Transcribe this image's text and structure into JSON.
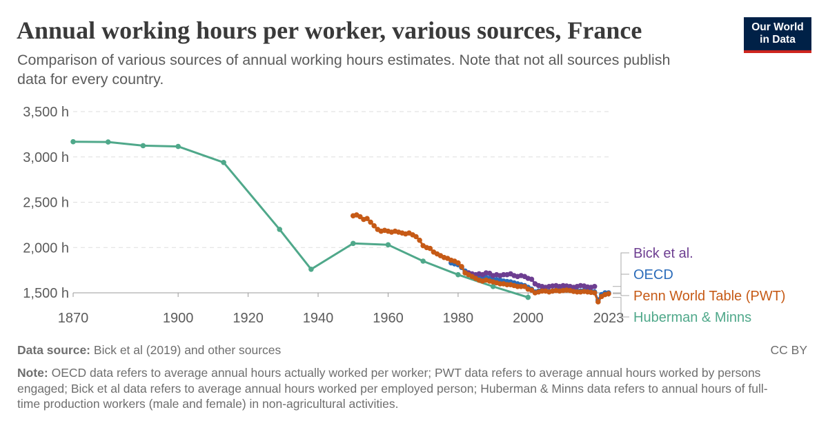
{
  "header": {
    "title": "Annual working hours per worker, various sources, France",
    "subtitle": "Comparison of various sources of annual working hours estimates. Note that not all sources publish data for every country.",
    "logo_line1": "Our World",
    "logo_line2": "in Data"
  },
  "footer": {
    "source_label": "Data source:",
    "source_text": "Bick et al (2019) and other sources",
    "license": "CC BY",
    "note_label": "Note:",
    "note_text": "OECD data refers to average annual hours actually worked per worker; PWT data refers to average annual hours worked by persons engaged; Bick et al data refers to average annual hours worked per employed person; Huberman & Minns data refers to annual hours of full-time production workers (male and female) in non-agricultural activities."
  },
  "colors": {
    "bick": "#6d3e91",
    "oecd": "#2b6cba",
    "pwt": "#c65a16",
    "huberman": "#4fa88a",
    "grid": "#dddddd"
  },
  "chart_data": {
    "type": "line",
    "x_ticks": [
      "1870",
      "1900",
      "1920",
      "1940",
      "1960",
      "1980",
      "2000",
      "2023"
    ],
    "y_ticks": [
      "1,500 h",
      "2,000 h",
      "2,500 h",
      "3,000 h",
      "3,500 h"
    ],
    "y_tick_values": [
      1500,
      2000,
      2500,
      3000,
      3500
    ],
    "x_tick_values": [
      1870,
      1900,
      1920,
      1940,
      1960,
      1980,
      2000,
      2023
    ],
    "xlim": [
      1870,
      2023
    ],
    "ylim": [
      1500,
      3500
    ],
    "grid": "horizontal dashed",
    "legend": "right, end-of-line labels",
    "series": [
      {
        "name": "Bick et al.",
        "color_key": "bick",
        "points": [
          [
            1983,
            1720
          ],
          [
            1984,
            1710
          ],
          [
            1985,
            1700
          ],
          [
            1986,
            1710
          ],
          [
            1987,
            1700
          ],
          [
            1988,
            1720
          ],
          [
            1989,
            1715
          ],
          [
            1990,
            1690
          ],
          [
            1991,
            1700
          ],
          [
            1992,
            1690
          ],
          [
            1993,
            1700
          ],
          [
            1994,
            1700
          ],
          [
            1995,
            1710
          ],
          [
            1996,
            1690
          ],
          [
            1997,
            1680
          ],
          [
            1998,
            1690
          ],
          [
            1999,
            1680
          ],
          [
            2000,
            1660
          ],
          [
            2001,
            1650
          ],
          [
            2002,
            1600
          ],
          [
            2003,
            1580
          ],
          [
            2004,
            1570
          ],
          [
            2005,
            1560
          ],
          [
            2006,
            1570
          ],
          [
            2007,
            1575
          ],
          [
            2008,
            1580
          ],
          [
            2009,
            1570
          ],
          [
            2010,
            1580
          ],
          [
            2011,
            1575
          ],
          [
            2012,
            1570
          ],
          [
            2013,
            1560
          ],
          [
            2014,
            1570
          ],
          [
            2015,
            1580
          ],
          [
            2016,
            1575
          ],
          [
            2017,
            1565
          ],
          [
            2018,
            1560
          ],
          [
            2019,
            1570
          ]
        ]
      },
      {
        "name": "OECD",
        "color_key": "oecd",
        "points": [
          [
            1978,
            1830
          ],
          [
            1979,
            1820
          ],
          [
            1980,
            1810
          ],
          [
            1981,
            1780
          ],
          [
            1982,
            1740
          ],
          [
            1983,
            1720
          ],
          [
            1984,
            1700
          ],
          [
            1985,
            1690
          ],
          [
            1986,
            1680
          ],
          [
            1987,
            1680
          ],
          [
            1988,
            1670
          ],
          [
            1989,
            1660
          ],
          [
            1990,
            1650
          ],
          [
            1991,
            1645
          ],
          [
            1992,
            1640
          ],
          [
            1993,
            1630
          ],
          [
            1994,
            1625
          ],
          [
            1995,
            1620
          ],
          [
            1996,
            1610
          ],
          [
            1997,
            1600
          ],
          [
            1998,
            1590
          ],
          [
            1999,
            1580
          ],
          [
            2000,
            1560
          ],
          [
            2001,
            1540
          ],
          [
            2002,
            1510
          ],
          [
            2003,
            1520
          ],
          [
            2004,
            1530
          ],
          [
            2005,
            1525
          ],
          [
            2006,
            1515
          ],
          [
            2007,
            1520
          ],
          [
            2008,
            1530
          ],
          [
            2009,
            1525
          ],
          [
            2010,
            1530
          ],
          [
            2011,
            1540
          ],
          [
            2012,
            1530
          ],
          [
            2013,
            1525
          ],
          [
            2014,
            1520
          ],
          [
            2015,
            1520
          ],
          [
            2016,
            1525
          ],
          [
            2017,
            1520
          ],
          [
            2018,
            1515
          ],
          [
            2019,
            1510
          ],
          [
            2020,
            1420
          ],
          [
            2021,
            1480
          ],
          [
            2022,
            1500
          ],
          [
            2023,
            1500
          ]
        ]
      },
      {
        "name": "Penn World Table (PWT)",
        "color_key": "pwt",
        "points": [
          [
            1950,
            2350
          ],
          [
            1951,
            2360
          ],
          [
            1952,
            2340
          ],
          [
            1953,
            2310
          ],
          [
            1954,
            2320
          ],
          [
            1955,
            2280
          ],
          [
            1956,
            2240
          ],
          [
            1957,
            2200
          ],
          [
            1958,
            2180
          ],
          [
            1959,
            2190
          ],
          [
            1960,
            2180
          ],
          [
            1961,
            2170
          ],
          [
            1962,
            2180
          ],
          [
            1963,
            2170
          ],
          [
            1964,
            2160
          ],
          [
            1965,
            2150
          ],
          [
            1966,
            2160
          ],
          [
            1967,
            2140
          ],
          [
            1968,
            2120
          ],
          [
            1969,
            2080
          ],
          [
            1970,
            2020
          ],
          [
            1971,
            2000
          ],
          [
            1972,
            1990
          ],
          [
            1973,
            1950
          ],
          [
            1974,
            1930
          ],
          [
            1975,
            1910
          ],
          [
            1976,
            1890
          ],
          [
            1977,
            1880
          ],
          [
            1978,
            1860
          ],
          [
            1979,
            1850
          ],
          [
            1980,
            1830
          ],
          [
            1981,
            1790
          ],
          [
            1982,
            1720
          ],
          [
            1983,
            1700
          ],
          [
            1984,
            1680
          ],
          [
            1985,
            1660
          ],
          [
            1986,
            1640
          ],
          [
            1987,
            1630
          ],
          [
            1988,
            1640
          ],
          [
            1989,
            1630
          ],
          [
            1990,
            1620
          ],
          [
            1991,
            1610
          ],
          [
            1992,
            1600
          ],
          [
            1993,
            1600
          ],
          [
            1994,
            1590
          ],
          [
            1995,
            1590
          ],
          [
            1996,
            1580
          ],
          [
            1997,
            1570
          ],
          [
            1998,
            1570
          ],
          [
            1999,
            1570
          ],
          [
            2000,
            1540
          ],
          [
            2001,
            1530
          ],
          [
            2002,
            1500
          ],
          [
            2003,
            1510
          ],
          [
            2004,
            1520
          ],
          [
            2005,
            1520
          ],
          [
            2006,
            1510
          ],
          [
            2007,
            1520
          ],
          [
            2008,
            1525
          ],
          [
            2009,
            1520
          ],
          [
            2010,
            1525
          ],
          [
            2011,
            1530
          ],
          [
            2012,
            1525
          ],
          [
            2013,
            1515
          ],
          [
            2014,
            1510
          ],
          [
            2015,
            1510
          ],
          [
            2016,
            1515
          ],
          [
            2017,
            1510
          ],
          [
            2018,
            1505
          ],
          [
            2019,
            1500
          ],
          [
            2020,
            1400
          ],
          [
            2021,
            1460
          ],
          [
            2022,
            1480
          ],
          [
            2023,
            1490
          ]
        ]
      },
      {
        "name": "Huberman & Minns",
        "color_key": "huberman",
        "points": [
          [
            1870,
            3168
          ],
          [
            1880,
            3165
          ],
          [
            1890,
            3124
          ],
          [
            1900,
            3115
          ],
          [
            1913,
            2939
          ],
          [
            1929,
            2200
          ],
          [
            1938,
            1760
          ],
          [
            1950,
            2045
          ],
          [
            1960,
            2030
          ],
          [
            1970,
            1850
          ],
          [
            1980,
            1700
          ],
          [
            1990,
            1570
          ],
          [
            2000,
            1450
          ]
        ]
      }
    ]
  }
}
